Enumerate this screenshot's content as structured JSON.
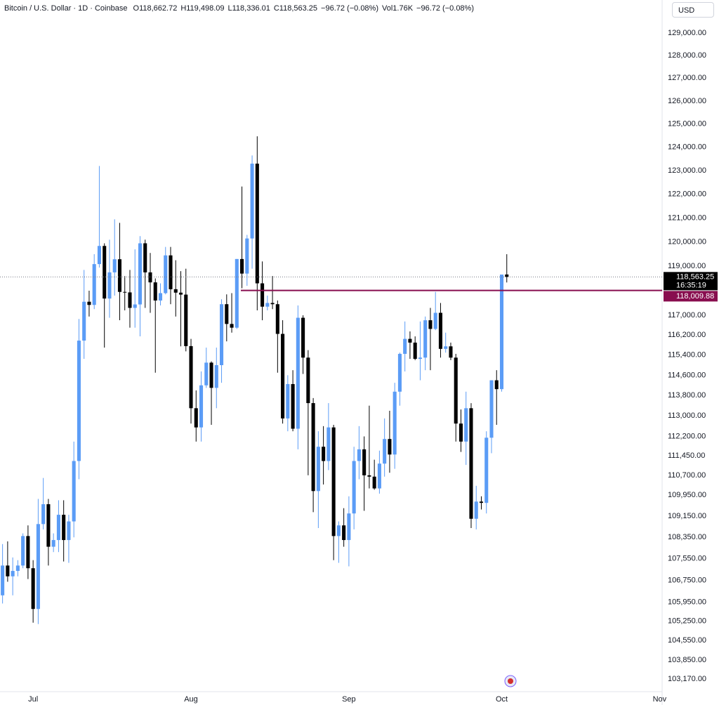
{
  "chart_data": {
    "type": "candlestick",
    "title": "Bitcoin / U.S. Dollar · 1D · Coinbase",
    "header": [
      "O118,662.72",
      "H119,498.09",
      "L118,336.01",
      "C118,563.25",
      "−96.72 (−0.08%)",
      "Vol1.76K",
      "−96.72 (−0.08%)"
    ],
    "currency": "USD",
    "categories": [
      null,
      null,
      null,
      null,
      null,
      null,
      "Jul",
      null,
      null,
      null,
      null,
      null,
      null,
      null,
      null,
      null,
      null,
      null,
      null,
      null,
      null,
      null,
      null,
      null,
      null,
      null,
      null,
      null,
      null,
      null,
      null,
      null,
      null,
      null,
      null,
      null,
      null,
      "Aug",
      null,
      null,
      null,
      null,
      null,
      null,
      null,
      null,
      null,
      null,
      null,
      null,
      null,
      null,
      null,
      null,
      null,
      null,
      null,
      null,
      null,
      null,
      null,
      null,
      null,
      null,
      null,
      null,
      null,
      null,
      "Sep",
      null,
      null,
      null,
      null,
      null,
      null,
      null,
      null,
      null,
      null,
      null,
      null,
      null,
      null,
      null,
      null,
      null,
      null,
      null,
      null,
      null,
      null,
      null,
      null,
      null,
      null,
      null,
      null,
      null,
      "Oct",
      null,
      null,
      null,
      null,
      null,
      null,
      null,
      null,
      null,
      null,
      null,
      null,
      null,
      null,
      null,
      null,
      null,
      null,
      null,
      null,
      null,
      null,
      null,
      null,
      null,
      null,
      null,
      null,
      null,
      null,
      "Nov"
    ],
    "open": [
      106200,
      107300,
      106900,
      107100,
      107300,
      108400,
      107200,
      105700,
      108850,
      109600,
      108000,
      108250,
      109200,
      108250,
      108950,
      111250,
      115980,
      117550,
      117420,
      119090,
      119840,
      117680,
      118750,
      119290,
      117950,
      117930,
      117300,
      117440,
      119950,
      118750,
      118340,
      117600,
      117900,
      119450,
      118060,
      117920,
      117840,
      115760,
      113300,
      112550,
      114200,
      115100,
      114100,
      115000,
      117450,
      116650,
      116500,
      119300,
      118700,
      120150,
      123300,
      118300,
      117350,
      117500,
      117450,
      116250,
      112900,
      114250,
      112500,
      116900,
      115300,
      113500,
      110100,
      111800,
      111250,
      112550,
      108400,
      108800,
      108250,
      109250,
      111250,
      111700,
      110700,
      110650,
      110200,
      111150,
      112100,
      111500,
      113950,
      115450,
      116050,
      115900,
      115250,
      115300,
      116800,
      116450,
      117100,
      115650,
      115750,
      115300,
      112700,
      112000,
      113300,
      109050,
      109700,
      109650,
      112150,
      114400,
      114050,
      118662.72,
      null,
      null,
      null,
      null,
      null,
      null,
      null,
      null,
      null,
      null,
      null,
      null,
      null,
      null,
      null,
      null,
      null,
      null,
      null,
      null,
      null,
      null,
      null,
      null,
      null,
      null,
      null,
      null,
      null,
      null
    ],
    "high": [
      108100,
      108200,
      107600,
      107500,
      108500,
      108800,
      107500,
      109800,
      110600,
      109800,
      108500,
      109750,
      109750,
      109200,
      112000,
      116850,
      118850,
      118000,
      119500,
      123200,
      119950,
      120100,
      120950,
      120800,
      118600,
      118850,
      119700,
      120250,
      120100,
      119550,
      118500,
      118300,
      119800,
      119800,
      119250,
      118800,
      118900,
      116050,
      114000,
      114750,
      115700,
      115150,
      115700,
      117650,
      117850,
      117900,
      119300,
      122330,
      120300,
      123650,
      124470,
      119200,
      117800,
      118600,
      117600,
      116800,
      114600,
      114800,
      117400,
      117000,
      115600,
      113700,
      112400,
      112600,
      113500,
      112650,
      108950,
      109450,
      109900,
      111800,
      112600,
      112200,
      113400,
      111300,
      111650,
      112900,
      113200,
      114300,
      115500,
      116750,
      116350,
      116150,
      116750,
      116950,
      117300,
      117950,
      117500,
      116300,
      115900,
      115450,
      113250,
      113950,
      113500,
      110300,
      109900,
      112400,
      114400,
      114800,
      118650,
      119498.09,
      null,
      null,
      null,
      null,
      null,
      null,
      null,
      null,
      null,
      null,
      null,
      null,
      null,
      null,
      null,
      null,
      null,
      null,
      null,
      null,
      null,
      null,
      null,
      null,
      null,
      null,
      null,
      null,
      null,
      null
    ],
    "low": [
      105900,
      106700,
      106200,
      106900,
      107200,
      106800,
      105200,
      105150,
      108650,
      107300,
      107800,
      107800,
      107450,
      107400,
      108350,
      110550,
      115250,
      116950,
      117250,
      118950,
      115700,
      116900,
      117800,
      116800,
      117200,
      116500,
      116500,
      116150,
      117300,
      117100,
      114700,
      117400,
      117850,
      117450,
      116950,
      115750,
      115550,
      112700,
      112000,
      112000,
      114100,
      112650,
      113300,
      114300,
      115950,
      116300,
      116450,
      118100,
      118200,
      118900,
      117200,
      116800,
      117200,
      117250,
      114700,
      112700,
      112400,
      112400,
      111700,
      114650,
      110700,
      109300,
      108700,
      110350,
      110900,
      107500,
      107400,
      108000,
      107270,
      108650,
      110550,
      109350,
      110200,
      110150,
      110000,
      110650,
      110800,
      110950,
      113400,
      114750,
      115250,
      115200,
      114400,
      114800,
      114800,
      116400,
      115300,
      115500,
      115200,
      112000,
      111600,
      111100,
      108700,
      108650,
      109400,
      109250,
      111550,
      112650,
      113950,
      118336.01,
      null,
      null,
      null,
      null,
      null,
      null,
      null,
      null,
      null,
      null,
      null,
      null,
      null,
      null,
      null,
      null,
      null,
      null,
      null,
      null,
      null,
      null,
      null,
      null,
      null,
      null,
      null,
      null,
      null,
      null
    ],
    "close": [
      107300,
      106900,
      107100,
      107300,
      108400,
      107200,
      105700,
      108850,
      109600,
      108000,
      108250,
      109200,
      108250,
      108950,
      111250,
      115980,
      117550,
      117420,
      119090,
      119840,
      117680,
      118750,
      119290,
      117950,
      117930,
      117300,
      117440,
      119950,
      118750,
      118340,
      117600,
      117900,
      119450,
      118060,
      117920,
      117840,
      115760,
      113300,
      112550,
      114200,
      115100,
      114100,
      115000,
      117450,
      116650,
      116500,
      119300,
      118700,
      120150,
      123300,
      118300,
      117350,
      117500,
      117450,
      116250,
      112900,
      114250,
      112500,
      116900,
      115300,
      113500,
      110100,
      111800,
      111250,
      112550,
      108400,
      108800,
      108250,
      109250,
      111250,
      111700,
      110700,
      110650,
      110200,
      111150,
      112100,
      111500,
      113950,
      115450,
      116050,
      115900,
      115250,
      115300,
      116800,
      116450,
      117100,
      115650,
      115750,
      115300,
      112700,
      112000,
      113300,
      109050,
      109700,
      109650,
      112150,
      114400,
      114050,
      118660,
      118563.25,
      null,
      null,
      null,
      null,
      null,
      null,
      null,
      null,
      null,
      null,
      null,
      null,
      null,
      null,
      null,
      null,
      null,
      null,
      null,
      null,
      null,
      null,
      null,
      null,
      null,
      null,
      null,
      null,
      null,
      null
    ],
    "up_color": "#5b9cf6",
    "down_color": "#000000",
    "log_scale": true,
    "grid": false,
    "ylim": [
      102720,
      130480
    ],
    "yticks": [
      {
        "value": 129000,
        "label": "129,000.00"
      },
      {
        "value": 128000,
        "label": "128,000.00"
      },
      {
        "value": 127000,
        "label": "127,000.00"
      },
      {
        "value": 126000,
        "label": "126,000.00"
      },
      {
        "value": 125000,
        "label": "125,000.00"
      },
      {
        "value": 124000,
        "label": "124,000.00"
      },
      {
        "value": 123000,
        "label": "123,000.00"
      },
      {
        "value": 122000,
        "label": "122,000.00"
      },
      {
        "value": 121000,
        "label": "121,000.00"
      },
      {
        "value": 120000,
        "label": "120,000.00"
      },
      {
        "value": 119000,
        "label": "119,000.00"
      },
      {
        "value": 117000,
        "label": "117,000.00"
      },
      {
        "value": 116200,
        "label": "116,200.00"
      },
      {
        "value": 115400,
        "label": "115,400.00"
      },
      {
        "value": 114600,
        "label": "114,600.00"
      },
      {
        "value": 113800,
        "label": "113,800.00"
      },
      {
        "value": 113000,
        "label": "113,000.00"
      },
      {
        "value": 112200,
        "label": "112,200.00"
      },
      {
        "value": 111450,
        "label": "111,450.00"
      },
      {
        "value": 110700,
        "label": "110,700.00"
      },
      {
        "value": 109950,
        "label": "109,950.00"
      },
      {
        "value": 109150,
        "label": "109,150.00"
      },
      {
        "value": 108350,
        "label": "108,350.00"
      },
      {
        "value": 107550,
        "label": "107,550.00"
      },
      {
        "value": 106750,
        "label": "106,750.00"
      },
      {
        "value": 105950,
        "label": "105,950.00"
      },
      {
        "value": 105250,
        "label": "105,250.00"
      },
      {
        "value": 104550,
        "label": "104,550.00"
      },
      {
        "value": 103850,
        "label": "103,850.00"
      },
      {
        "value": 103170,
        "label": "103,170.00"
      }
    ],
    "last_price": {
      "value": 118563.25,
      "label": "118,563.25",
      "countdown": "16:35:19"
    },
    "price_line": {
      "value": 118009.88,
      "label": "118,009.88",
      "color": "#880e4f"
    }
  }
}
